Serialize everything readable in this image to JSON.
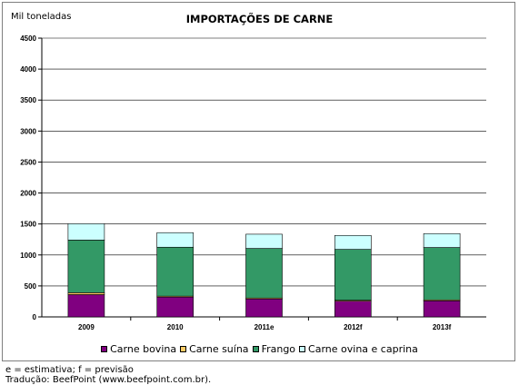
{
  "chart_data": {
    "type": "bar",
    "stacked": true,
    "title": "IMPORTAÇÕES DE CARNE",
    "unit_label": "Mil toneladas",
    "xlabel": "",
    "ylabel": "",
    "categories": [
      "2009",
      "2010",
      "2011e",
      "2012f",
      "2013f"
    ],
    "ylim": [
      0,
      4500
    ],
    "yticks": [
      0,
      500,
      1000,
      1500,
      2000,
      2500,
      3000,
      3500,
      4000,
      4500
    ],
    "grid": true,
    "legend_position": "bottom",
    "series": [
      {
        "name": "Carne bovina",
        "color": "#800080",
        "values": [
          360,
          320,
          290,
          255,
          260
        ]
      },
      {
        "name": "Carne suína",
        "color": "#ffcc66",
        "values": [
          30,
          15,
          15,
          15,
          15
        ]
      },
      {
        "name": "Frango",
        "color": "#339966",
        "values": [
          850,
          790,
          800,
          820,
          845
        ]
      },
      {
        "name": "Carne ovina e caprina",
        "color": "#ccffff",
        "values": [
          265,
          235,
          230,
          225,
          225
        ]
      }
    ]
  },
  "footnotes": {
    "line1": "e = estimativa; f = previsão",
    "line2": "Tradução: BeefPoint (www.beefpoint.com.br)."
  }
}
